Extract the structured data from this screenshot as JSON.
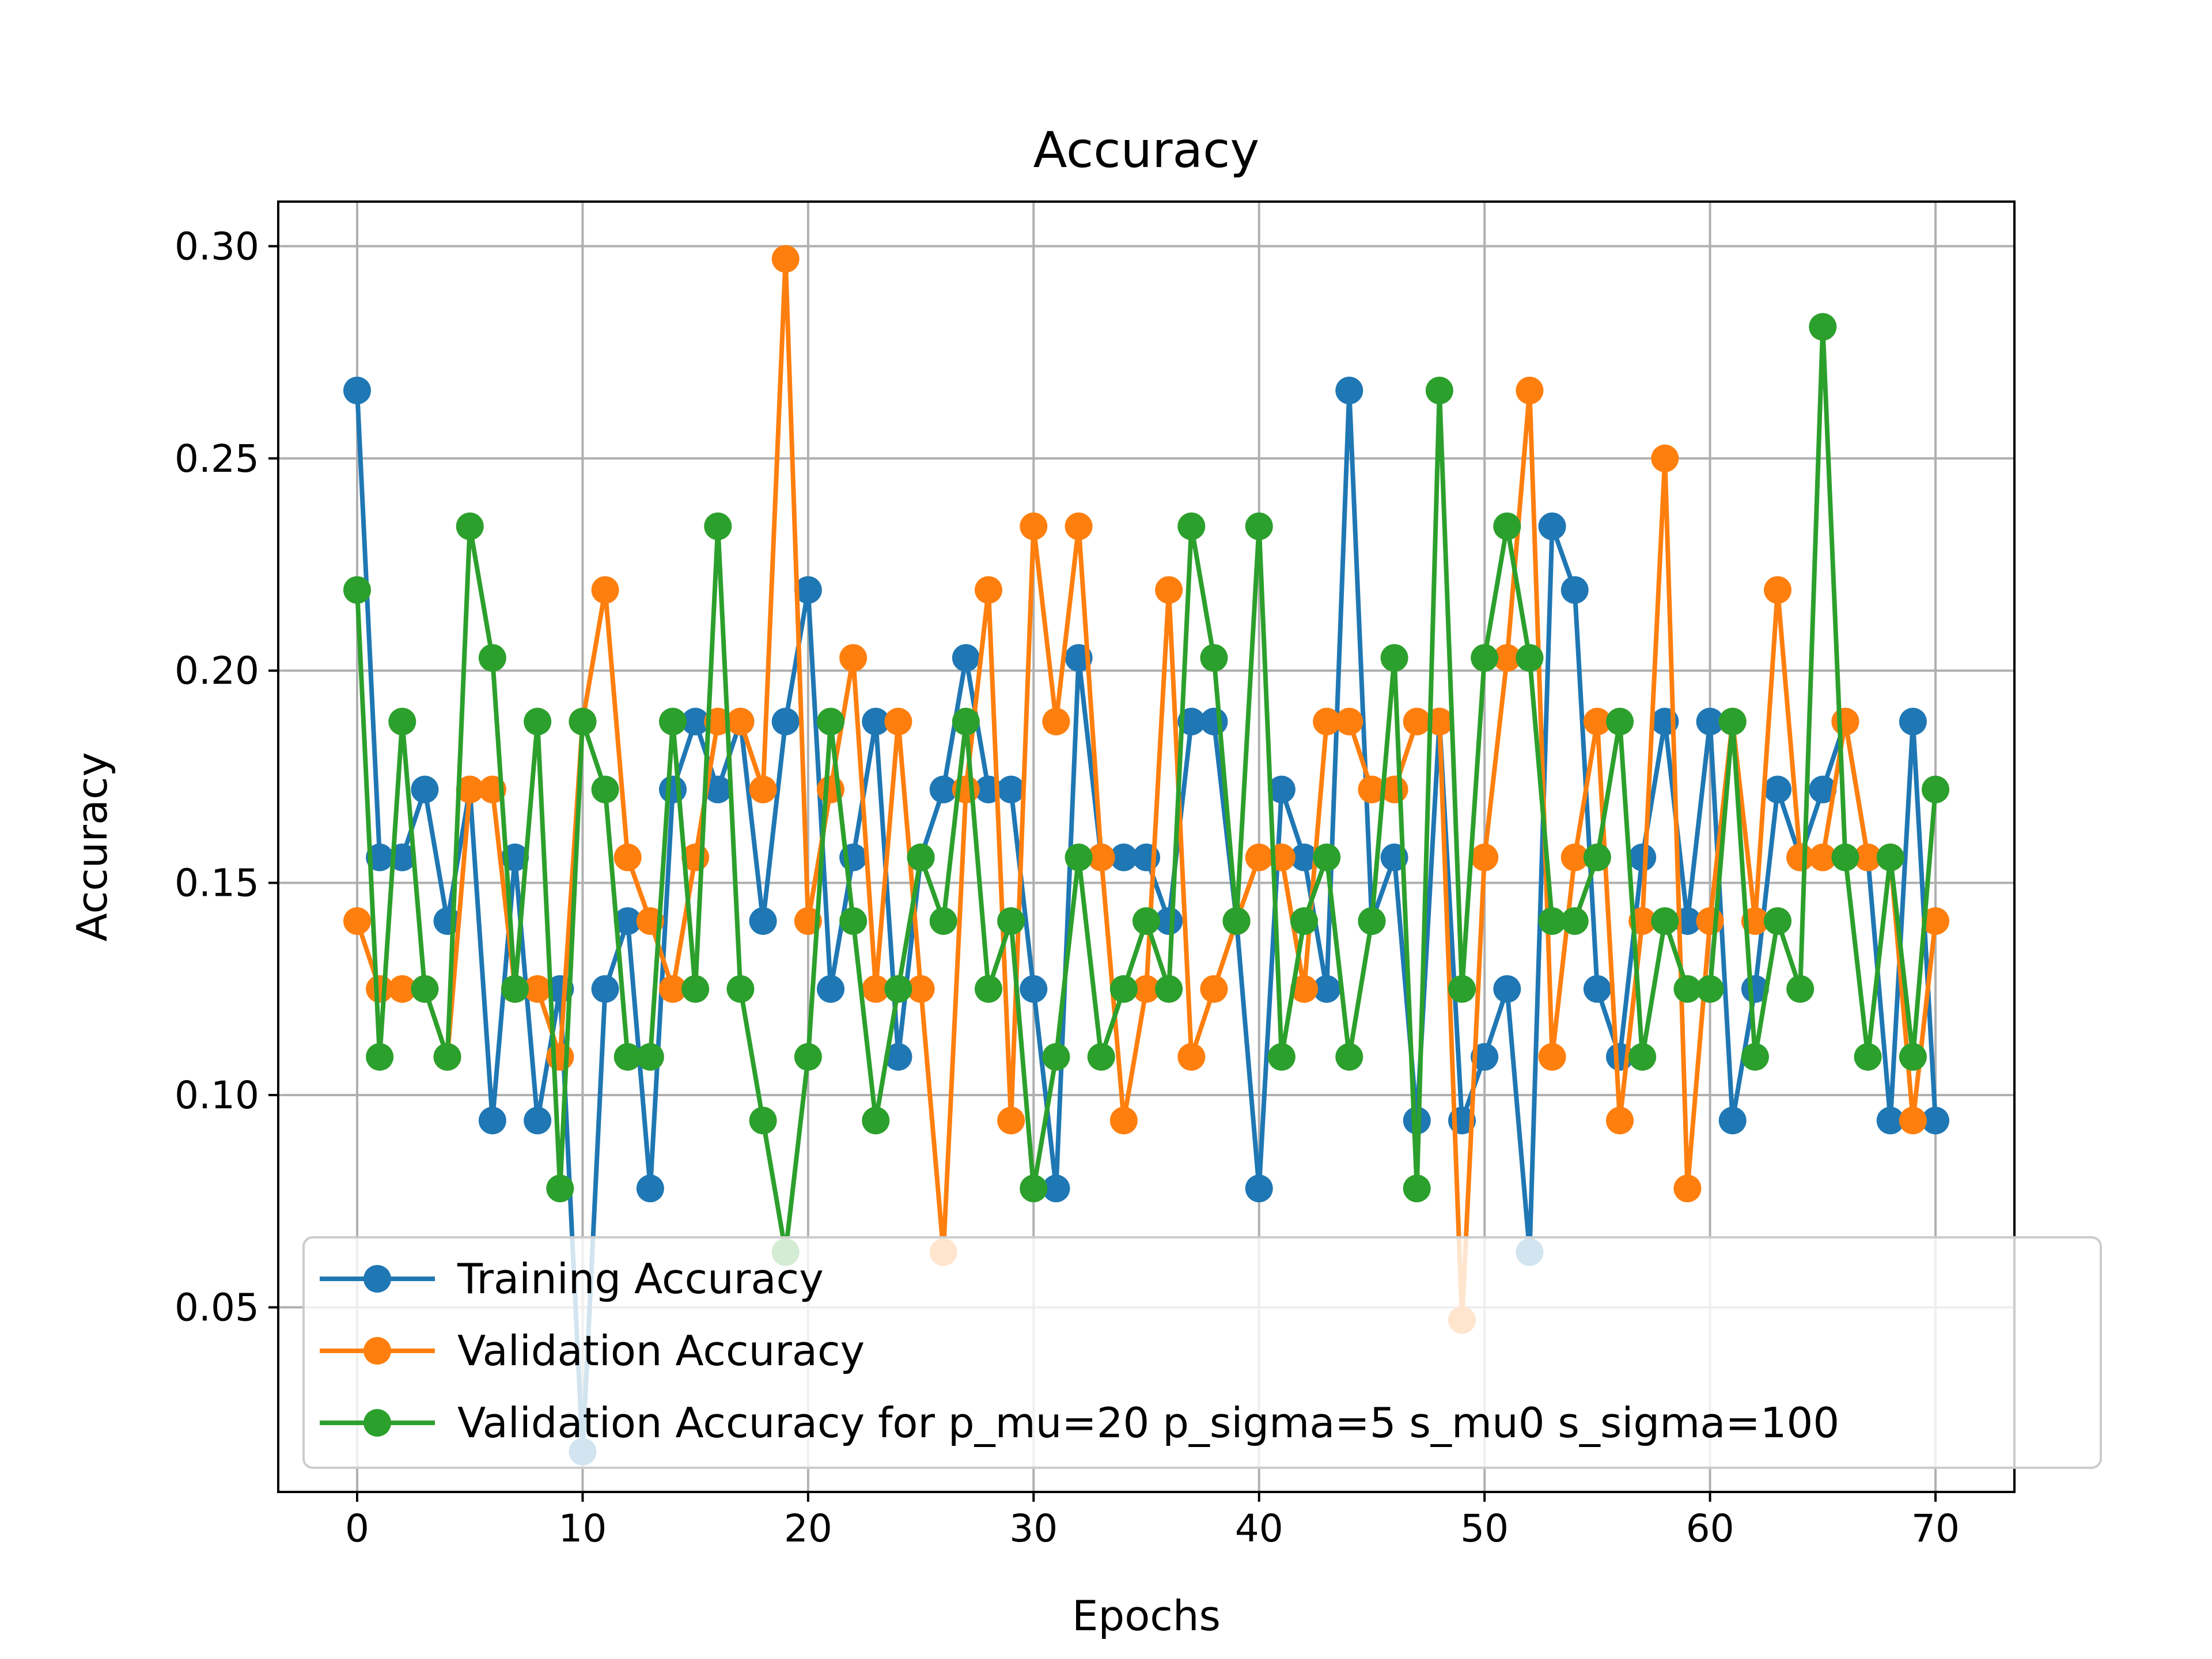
{
  "chart_data": {
    "type": "line",
    "title": "Accuracy",
    "xlabel": "Epochs",
    "ylabel": "Accuracy",
    "xlim": [
      -3.5,
      73.5
    ],
    "ylim": [
      0.0065,
      0.3105
    ],
    "xticks": [
      0,
      10,
      20,
      30,
      40,
      50,
      60,
      70
    ],
    "xtick_labels": [
      "0",
      "10",
      "20",
      "30",
      "40",
      "50",
      "60",
      "70"
    ],
    "yticks": [
      0.05,
      0.1,
      0.15,
      0.2,
      0.25,
      0.3
    ],
    "ytick_labels": [
      "0.05",
      "0.10",
      "0.15",
      "0.20",
      "0.25",
      "0.30"
    ],
    "grid": true,
    "legend_position": "lower-left",
    "x": [
      0,
      1,
      2,
      3,
      4,
      5,
      6,
      7,
      8,
      9,
      10,
      11,
      12,
      13,
      14,
      15,
      16,
      17,
      18,
      19,
      20,
      21,
      22,
      23,
      24,
      25,
      26,
      27,
      28,
      29,
      30,
      31,
      32,
      33,
      34,
      35,
      36,
      37,
      38,
      39,
      40,
      41,
      42,
      43,
      44,
      45,
      46,
      47,
      48,
      49,
      50,
      51,
      52,
      53,
      54,
      55,
      56,
      57,
      58,
      59,
      60,
      61,
      62,
      63,
      64,
      65,
      66,
      67,
      68,
      69,
      70
    ],
    "series": [
      {
        "name": "Training Accuracy",
        "color": "#1f77b4",
        "values": [
          0.266,
          0.156,
          0.156,
          0.172,
          0.141,
          0.172,
          0.094,
          0.156,
          0.094,
          0.125,
          0.016,
          0.125,
          0.141,
          0.078,
          0.172,
          0.188,
          0.172,
          0.188,
          0.141,
          0.188,
          0.219,
          0.125,
          0.156,
          0.188,
          0.109,
          0.156,
          0.172,
          0.203,
          0.172,
          0.172,
          0.125,
          0.078,
          0.203,
          0.156,
          0.156,
          0.156,
          0.141,
          0.188,
          0.188,
          0.141,
          0.078,
          0.172,
          0.156,
          0.125,
          0.266,
          0.141,
          0.156,
          0.094,
          0.188,
          0.094,
          0.109,
          0.125,
          0.063,
          0.234,
          0.219,
          0.125,
          0.109,
          0.156,
          0.188,
          0.141,
          0.188,
          0.094,
          0.125,
          0.172,
          0.156,
          0.172,
          0.188,
          0.156,
          0.094,
          0.188,
          0.094
        ]
      },
      {
        "name": "Validation Accuracy",
        "color": "#ff7f0e",
        "values": [
          0.141,
          0.125,
          0.125,
          0.125,
          0.109,
          0.172,
          0.172,
          0.125,
          0.125,
          0.109,
          0.188,
          0.219,
          0.156,
          0.141,
          0.125,
          0.156,
          0.188,
          0.188,
          0.172,
          0.297,
          0.141,
          0.172,
          0.203,
          0.125,
          0.188,
          0.125,
          0.063,
          0.172,
          0.219,
          0.094,
          0.234,
          0.188,
          0.234,
          0.156,
          0.094,
          0.125,
          0.219,
          0.109,
          0.125,
          0.141,
          0.156,
          0.156,
          0.125,
          0.188,
          0.188,
          0.172,
          0.172,
          0.188,
          0.188,
          0.047,
          0.156,
          0.203,
          0.266,
          0.109,
          0.156,
          0.188,
          0.094,
          0.141,
          0.25,
          0.078,
          0.141,
          0.188,
          0.141,
          0.219,
          0.156,
          0.156,
          0.188,
          0.156,
          0.156,
          0.094,
          0.141
        ]
      },
      {
        "name": "Validation Accuracy for p_mu=20 p_sigma=5 s_mu0 s_sigma=100",
        "color": "#2ca02c",
        "values": [
          0.219,
          0.109,
          0.188,
          0.125,
          0.109,
          0.234,
          0.203,
          0.125,
          0.188,
          0.078,
          0.188,
          0.172,
          0.109,
          0.109,
          0.188,
          0.125,
          0.234,
          0.125,
          0.094,
          0.063,
          0.109,
          0.188,
          0.141,
          0.094,
          0.125,
          0.156,
          0.141,
          0.188,
          0.125,
          0.141,
          0.078,
          0.109,
          0.156,
          0.109,
          0.125,
          0.141,
          0.125,
          0.234,
          0.203,
          0.141,
          0.234,
          0.109,
          0.141,
          0.156,
          0.109,
          0.141,
          0.203,
          0.078,
          0.266,
          0.125,
          0.203,
          0.234,
          0.203,
          0.141,
          0.141,
          0.156,
          0.188,
          0.109,
          0.141,
          0.125,
          0.125,
          0.188,
          0.109,
          0.141,
          0.125,
          0.281,
          0.156,
          0.109,
          0.156,
          0.109,
          0.172
        ]
      }
    ]
  }
}
